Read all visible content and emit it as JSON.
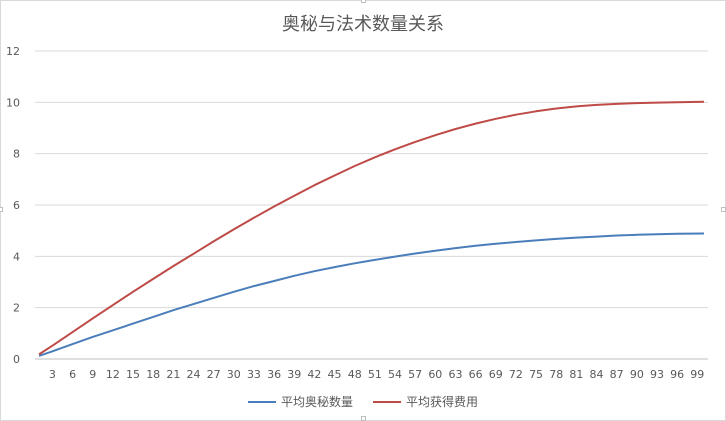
{
  "chart_data": {
    "type": "line",
    "title": "奥秘与法术数量关系",
    "xlabel": "",
    "ylabel": "",
    "ylim": [
      0,
      12
    ],
    "yticks": [
      0,
      2,
      4,
      6,
      8,
      10,
      12
    ],
    "xlim": [
      1,
      100
    ],
    "xticks": [
      3,
      6,
      9,
      12,
      15,
      18,
      21,
      24,
      27,
      30,
      33,
      36,
      39,
      42,
      45,
      48,
      51,
      54,
      57,
      60,
      63,
      66,
      69,
      72,
      75,
      78,
      81,
      84,
      87,
      90,
      93,
      96,
      99
    ],
    "grid": true,
    "legend_position": "bottom",
    "series": [
      {
        "name": "平均奥秘数量",
        "color": "#4a7ebb",
        "points": [
          [
            1,
            0.12
          ],
          [
            3,
            0.3
          ],
          [
            6,
            0.58
          ],
          [
            9,
            0.86
          ],
          [
            12,
            1.12
          ],
          [
            15,
            1.38
          ],
          [
            18,
            1.64
          ],
          [
            21,
            1.9
          ],
          [
            24,
            2.14
          ],
          [
            27,
            2.38
          ],
          [
            30,
            2.62
          ],
          [
            33,
            2.84
          ],
          [
            36,
            3.04
          ],
          [
            39,
            3.24
          ],
          [
            42,
            3.42
          ],
          [
            45,
            3.58
          ],
          [
            48,
            3.73
          ],
          [
            51,
            3.86
          ],
          [
            54,
            3.99
          ],
          [
            57,
            4.11
          ],
          [
            60,
            4.22
          ],
          [
            63,
            4.32
          ],
          [
            66,
            4.41
          ],
          [
            69,
            4.49
          ],
          [
            72,
            4.56
          ],
          [
            75,
            4.62
          ],
          [
            78,
            4.68
          ],
          [
            81,
            4.73
          ],
          [
            84,
            4.77
          ],
          [
            87,
            4.81
          ],
          [
            90,
            4.84
          ],
          [
            93,
            4.86
          ],
          [
            96,
            4.88
          ],
          [
            100,
            4.89
          ]
        ]
      },
      {
        "name": "平均获得费用",
        "color": "#be4b48",
        "points": [
          [
            1,
            0.18
          ],
          [
            3,
            0.52
          ],
          [
            6,
            1.05
          ],
          [
            9,
            1.58
          ],
          [
            12,
            2.1
          ],
          [
            15,
            2.62
          ],
          [
            18,
            3.12
          ],
          [
            21,
            3.62
          ],
          [
            24,
            4.1
          ],
          [
            27,
            4.58
          ],
          [
            30,
            5.05
          ],
          [
            33,
            5.5
          ],
          [
            36,
            5.94
          ],
          [
            39,
            6.36
          ],
          [
            42,
            6.77
          ],
          [
            45,
            7.15
          ],
          [
            48,
            7.52
          ],
          [
            51,
            7.86
          ],
          [
            54,
            8.17
          ],
          [
            57,
            8.46
          ],
          [
            60,
            8.72
          ],
          [
            63,
            8.96
          ],
          [
            66,
            9.17
          ],
          [
            69,
            9.36
          ],
          [
            72,
            9.52
          ],
          [
            75,
            9.65
          ],
          [
            78,
            9.76
          ],
          [
            81,
            9.84
          ],
          [
            84,
            9.9
          ],
          [
            87,
            9.94
          ],
          [
            90,
            9.97
          ],
          [
            93,
            9.99
          ],
          [
            96,
            10.0
          ],
          [
            100,
            10.02
          ]
        ]
      }
    ]
  }
}
